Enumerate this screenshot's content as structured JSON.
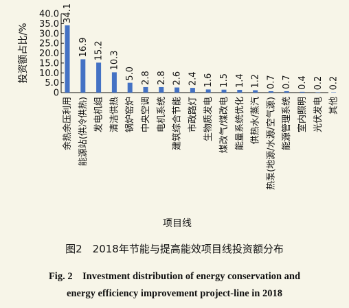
{
  "chart_data": {
    "type": "bar",
    "ylabel": "投资额占比/%",
    "xlabel": "项目线",
    "ylim": [
      0,
      40
    ],
    "yticks": [
      "0",
      "5.0",
      "10.0",
      "15.0",
      "20.0",
      "25.0",
      "30.0",
      "35.0",
      "40.0"
    ],
    "grid": false,
    "bar_color": "#4472c4",
    "categories": [
      "余热余压利用",
      "能源站(供冷供热)",
      "发电机组",
      "清洁供热",
      "锅炉窑炉",
      "中央空调",
      "电机系统",
      "建筑综合节能",
      "市政路灯",
      "生物质发电",
      "煤改气/煤改电",
      "能量系统优化",
      "供热水/蒸汽",
      "热泵(地源/水源/空气源)",
      "能源管理系统",
      "室内照明",
      "光伏发电",
      "其他"
    ],
    "values": [
      34.1,
      16.9,
      15.2,
      10.3,
      5.0,
      2.8,
      2.8,
      2.6,
      2.4,
      1.6,
      1.5,
      1.4,
      1.2,
      0.7,
      0.7,
      0.4,
      0.2,
      0.2
    ],
    "value_labels": [
      "34.1",
      "16.9",
      "15.2",
      "10.3",
      "5.0",
      "2.8",
      "2.8",
      "2.6",
      "2.4",
      "1.6",
      "1.5",
      "1.4",
      "1.2",
      "0.7",
      "0.7",
      "0.4",
      "0.2",
      "0.2"
    ]
  },
  "caption": {
    "zh": "图2　2018年节能与提高能效项目线投资额分布",
    "en_line1": "Fig. 2　Investment distribution of energy conservation and",
    "en_line2": "energy efficiency improvement project-line in 2018"
  }
}
